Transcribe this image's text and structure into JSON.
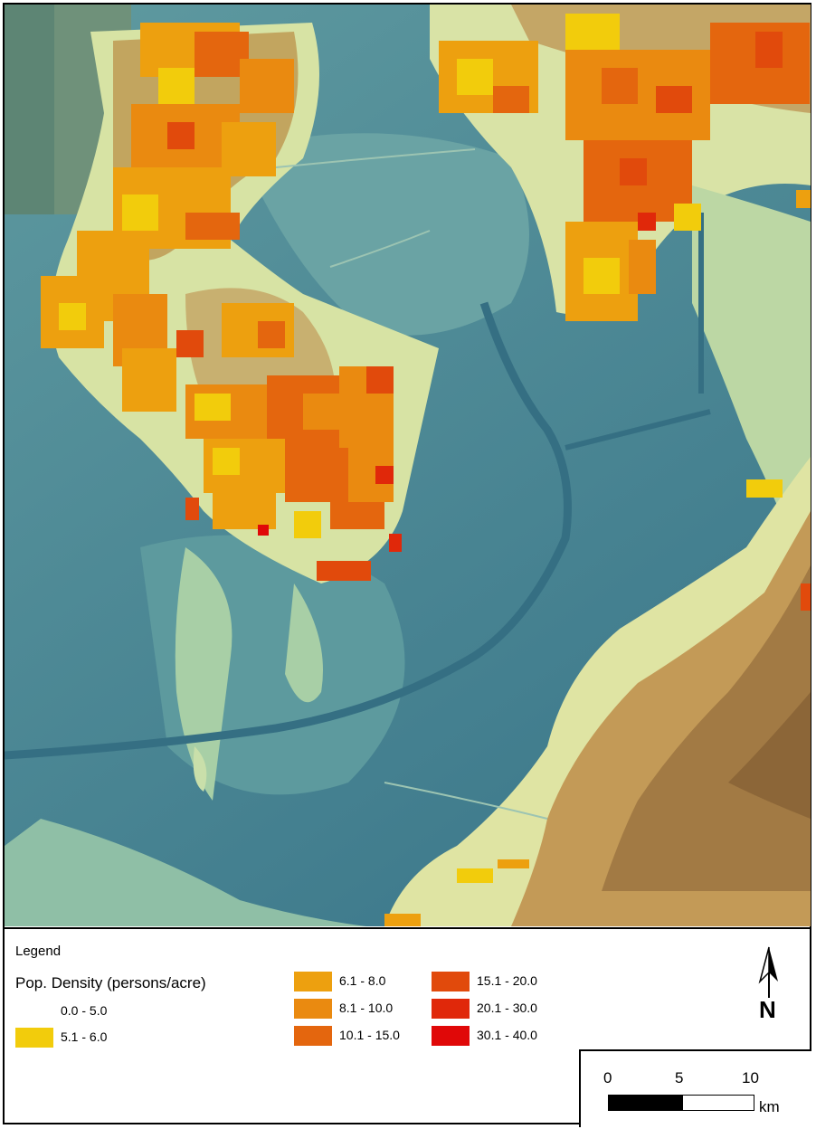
{
  "legend": {
    "title": "Legend",
    "subtitle": "Pop. Density (persons/acre)",
    "classes": [
      {
        "label": "0.0 - 5.0",
        "color": "#ffffff"
      },
      {
        "label": "5.1 - 6.0",
        "color": "#f2cc0c"
      },
      {
        "label": "6.1 - 8.0",
        "color": "#eda00f"
      },
      {
        "label": "8.1 - 10.0",
        "color": "#ea8a10"
      },
      {
        "label": "10.1 - 15.0",
        "color": "#e4660e"
      },
      {
        "label": "15.1 - 20.0",
        "color": "#e14a0c"
      },
      {
        "label": "20.1 - 30.0",
        "color": "#e0280a"
      },
      {
        "label": "30.1 - 40.0",
        "color": "#e00808"
      }
    ]
  },
  "north_arrow": {
    "label": "N",
    "icon": "north-arrow-icon"
  },
  "scale_bar": {
    "ticks": [
      "0",
      "5",
      "10"
    ],
    "unit": "km"
  },
  "colors": {
    "deep_water": "#3f7d8f",
    "shallow_water": "#6fa7a6",
    "coastal": "#b9d6a7",
    "lowland": "#dde6a9",
    "upland": "#b88a4d",
    "high": "#8f6a3c"
  }
}
